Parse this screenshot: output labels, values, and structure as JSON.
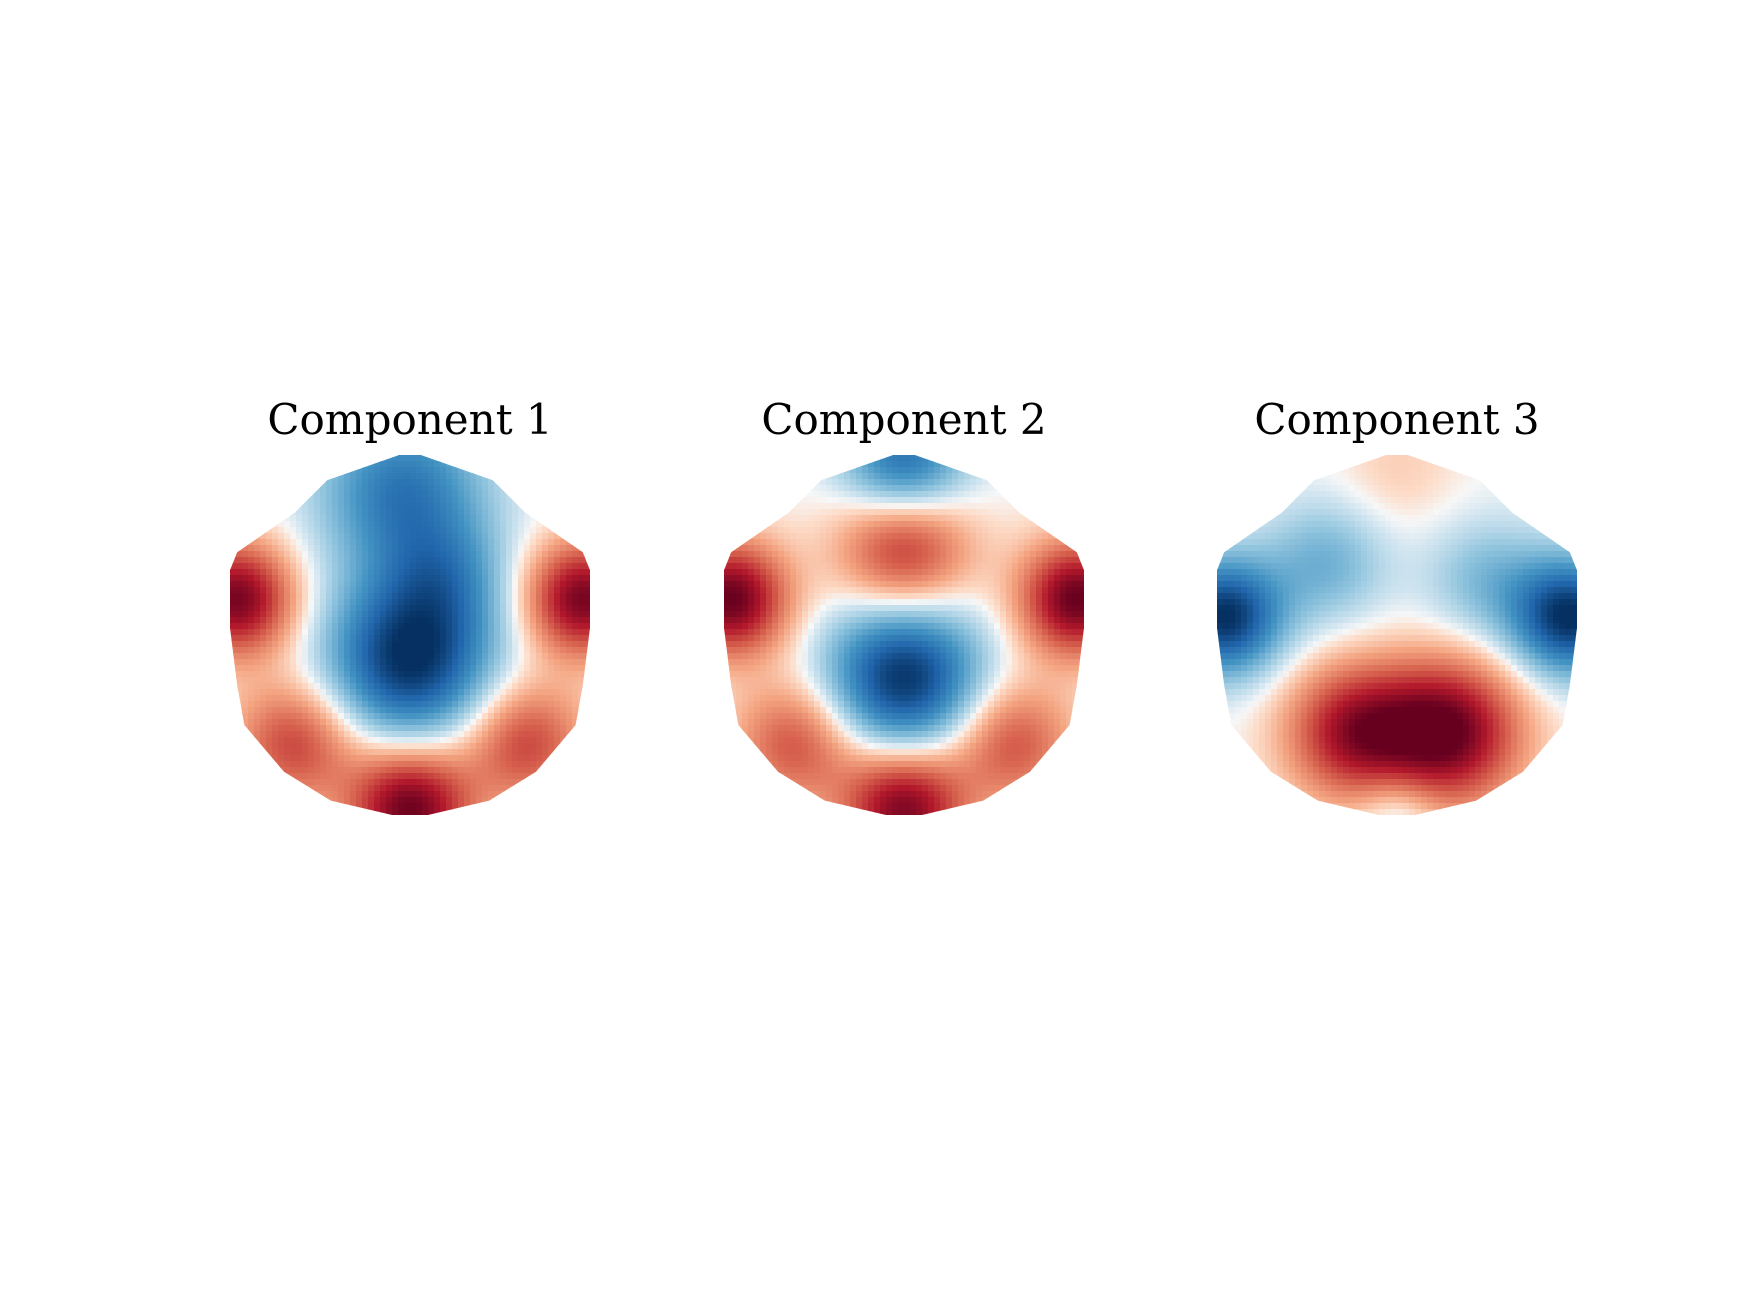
{
  "chart_data": [
    {
      "type": "heatmap",
      "title": "Component 1",
      "colormap": "RdBu_r",
      "colors": {
        "negative": "#053061",
        "zero": "#f7f7f7",
        "positive": "#67001f"
      },
      "blobs": [
        {
          "x": 0.5,
          "y": 0.57,
          "value": -1.0,
          "spread": 0.16
        },
        {
          "x": 0.48,
          "y": 0.1,
          "value": -0.65,
          "spread": 0.16
        },
        {
          "x": 0.6,
          "y": 0.34,
          "value": -0.35,
          "spread": 0.12
        },
        {
          "x": 0.02,
          "y": 0.4,
          "value": 0.95,
          "spread": 0.11
        },
        {
          "x": 0.98,
          "y": 0.4,
          "value": 0.95,
          "spread": 0.11
        },
        {
          "x": 0.5,
          "y": 0.98,
          "value": 1.0,
          "spread": 0.12
        },
        {
          "x": 0.18,
          "y": 0.8,
          "value": 0.6,
          "spread": 0.12
        },
        {
          "x": 0.82,
          "y": 0.8,
          "value": 0.6,
          "spread": 0.12
        }
      ]
    },
    {
      "type": "heatmap",
      "title": "Component 2",
      "colormap": "RdBu_r",
      "colors": {
        "negative": "#053061",
        "zero": "#f7f7f7",
        "positive": "#67001f"
      },
      "blobs": [
        {
          "x": 0.5,
          "y": 0.62,
          "value": -1.0,
          "spread": 0.15
        },
        {
          "x": 0.5,
          "y": 0.02,
          "value": -0.75,
          "spread": 0.12
        },
        {
          "x": 0.5,
          "y": 0.26,
          "value": 0.7,
          "spread": 0.13
        },
        {
          "x": 0.02,
          "y": 0.4,
          "value": 1.0,
          "spread": 0.11
        },
        {
          "x": 0.98,
          "y": 0.4,
          "value": 1.0,
          "spread": 0.11
        },
        {
          "x": 0.5,
          "y": 0.98,
          "value": 0.95,
          "spread": 0.12
        },
        {
          "x": 0.2,
          "y": 0.8,
          "value": 0.55,
          "spread": 0.12
        },
        {
          "x": 0.8,
          "y": 0.8,
          "value": 0.55,
          "spread": 0.12
        }
      ]
    },
    {
      "type": "heatmap",
      "title": "Component 3",
      "colormap": "RdBu_r",
      "colors": {
        "negative": "#053061",
        "zero": "#f7f7f7",
        "positive": "#67001f"
      },
      "blobs": [
        {
          "x": 0.64,
          "y": 0.77,
          "value": 1.0,
          "spread": 0.14
        },
        {
          "x": 0.38,
          "y": 0.77,
          "value": 0.8,
          "spread": 0.13
        },
        {
          "x": 0.02,
          "y": 0.45,
          "value": -1.0,
          "spread": 0.11
        },
        {
          "x": 0.98,
          "y": 0.45,
          "value": -1.0,
          "spread": 0.11
        },
        {
          "x": 0.5,
          "y": 0.04,
          "value": 0.12,
          "spread": 0.12
        },
        {
          "x": 0.5,
          "y": 0.99,
          "value": -0.25,
          "spread": 0.08
        },
        {
          "x": 0.3,
          "y": 0.3,
          "value": -0.35,
          "spread": 0.12
        },
        {
          "x": 0.75,
          "y": 0.35,
          "value": -0.3,
          "spread": 0.12
        }
      ]
    }
  ]
}
